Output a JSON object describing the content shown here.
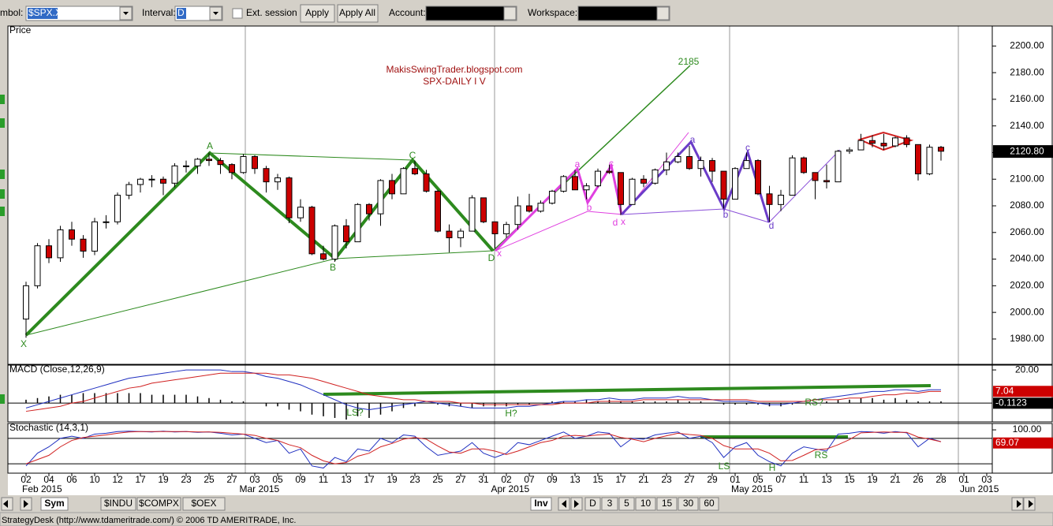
{
  "toolbar": {
    "symbol_label": "mbol:",
    "symbol": "$SPX.X",
    "interval_label": "Interval:",
    "interval": "D",
    "ext_session": "Ext. session",
    "apply": "Apply",
    "apply_all": "Apply All",
    "account_label": "Account:",
    "workspace_label": "Workspace:"
  },
  "chart_data": [
    {
      "type": "candlestick",
      "title": "Price",
      "categories": [
        "02",
        null,
        "04",
        null,
        "06",
        null,
        "10",
        null,
        "12",
        null,
        "17",
        null,
        "19",
        null,
        "23",
        null,
        "25",
        null,
        "27",
        null,
        "03",
        null,
        "05",
        null,
        "09",
        null,
        "11",
        null,
        "13",
        null,
        "17",
        null,
        "19",
        null,
        "23",
        null,
        "25",
        null,
        "27",
        null,
        "31",
        null,
        "02",
        null,
        "07",
        null,
        "09",
        null,
        "13",
        null,
        "15",
        null,
        "17",
        null,
        "21",
        null,
        "23",
        null,
        "27",
        null,
        "29",
        null,
        "01",
        null,
        "05",
        null,
        "07",
        null,
        "11",
        null,
        "13",
        null,
        "15",
        null,
        "19",
        null,
        "21",
        null,
        "26",
        null,
        "28",
        null,
        "01",
        null,
        "03"
      ],
      "open": [
        1995,
        2020,
        2050,
        2041,
        2062,
        2055,
        2046,
        2068,
        2068,
        2088,
        2096,
        2100,
        2100,
        2097,
        2110,
        2110,
        2115,
        2114,
        2111,
        2105,
        2117,
        2108,
        2098,
        2101,
        2071,
        2079,
        2044,
        2040,
        2065,
        2053,
        2081,
        2074,
        2099,
        2089,
        2108,
        2104,
        2091,
        2061,
        2056,
        2061,
        2086,
        2068,
        2059,
        2066,
        2080,
        2076,
        2082,
        2091,
        2102,
        2092,
        2095,
        2106,
        2105,
        2081,
        2100,
        2097,
        2107,
        2113,
        2117,
        2108,
        2114,
        2106,
        2085,
        2108,
        2114,
        2089,
        2081,
        2088,
        2116,
        2105,
        2099,
        2098,
        2121,
        2122,
        2129,
        2127,
        2125,
        2131,
        2126,
        2104,
        2124,
        null,
        null,
        null,
        null
      ],
      "high": [
        2023,
        2052,
        2055,
        2065,
        2068,
        2058,
        2071,
        2073,
        2090,
        2098,
        2101,
        2103,
        2102,
        2112,
        2114,
        2116,
        2120,
        2116,
        2112,
        2119,
        2118,
        2110,
        2104,
        2102,
        2085,
        2080,
        2050,
        2066,
        2070,
        2082,
        2082,
        2100,
        2104,
        2109,
        2114,
        2107,
        2092,
        2066,
        2063,
        2088,
        2086,
        2068,
        2068,
        2087,
        2089,
        2084,
        2092,
        2103,
        2107,
        2097,
        2108,
        2111,
        2105,
        2101,
        2103,
        2108,
        2120,
        2120,
        2125,
        2117,
        2116,
        2106,
        2109,
        2120,
        2115,
        2095,
        2092,
        2118,
        2117,
        2105,
        2111,
        2122,
        2124,
        2134,
        2133,
        2134,
        2132,
        2133,
        2126,
        2126,
        2125,
        null,
        null,
        null,
        null
      ],
      "low": [
        1981,
        2018,
        2037,
        2038,
        2050,
        2041,
        2043,
        2063,
        2066,
        2085,
        2090,
        2094,
        2088,
        2094,
        2105,
        2104,
        2110,
        2104,
        2100,
        2104,
        2104,
        2090,
        2092,
        2067,
        2068,
        2043,
        2039,
        2038,
        2048,
        2053,
        2069,
        2065,
        2085,
        2089,
        2103,
        2090,
        2060,
        2045,
        2049,
        2061,
        2067,
        2048,
        2056,
        2062,
        2075,
        2075,
        2081,
        2090,
        2092,
        2085,
        2094,
        2104,
        2073,
        2081,
        2094,
        2096,
        2103,
        2112,
        2107,
        2102,
        2098,
        2078,
        2085,
        2108,
        2088,
        2068,
        2076,
        2088,
        2104,
        2085,
        2093,
        2098,
        2119,
        2122,
        2124,
        2122,
        2124,
        2124,
        2099,
        2103,
        2114,
        null,
        null,
        null,
        null
      ],
      "close": [
        2020,
        2050,
        2041,
        2062,
        2055,
        2046,
        2068,
        2068,
        2088,
        2096,
        2100,
        2100,
        2097,
        2110,
        2110,
        2115,
        2114,
        2111,
        2105,
        2117,
        2108,
        2098,
        2101,
        2071,
        2079,
        2044,
        2040,
        2065,
        2053,
        2081,
        2074,
        2099,
        2089,
        2108,
        2104,
        2091,
        2061,
        2056,
        2061,
        2086,
        2068,
        2059,
        2066,
        2080,
        2076,
        2082,
        2091,
        2102,
        2092,
        2095,
        2106,
        2105,
        2081,
        2100,
        2097,
        2107,
        2113,
        2117,
        2108,
        2114,
        2106,
        2085,
        2108,
        2114,
        2089,
        2081,
        2088,
        2116,
        2105,
        2099,
        2098,
        2121,
        2122,
        2129,
        2127,
        2125,
        2131,
        2126,
        2104,
        2124,
        2121,
        null,
        null,
        null,
        null
      ],
      "up_color": "#ffffff",
      "down_color": "#cc0000",
      "ylim": [
        1961,
        2215
      ],
      "yticks": [
        {
          "value": 1980,
          "label": "1980.00"
        },
        {
          "value": 2000,
          "label": "2000.00"
        },
        {
          "value": 2020,
          "label": "2020.00"
        },
        {
          "value": 2040,
          "label": "2040.00"
        },
        {
          "value": 2060,
          "label": "2060.00"
        },
        {
          "value": 2080,
          "label": "2080.00"
        },
        {
          "value": 2100,
          "label": "2100.00"
        },
        {
          "value": 2120,
          "label": "2120.00"
        },
        {
          "value": 2140,
          "label": "2140.00"
        },
        {
          "value": 2160,
          "label": "2160.00"
        },
        {
          "value": 2180,
          "label": "2180.00"
        },
        {
          "value": 2200,
          "label": "2200.00"
        }
      ],
      "last_price": {
        "value": 2120.8,
        "label": "2120.80"
      },
      "months": [
        "Feb 2015",
        "Mar 2015",
        "Apr 2015",
        "May 2015",
        "Jun 2015"
      ],
      "watermark": [
        "MakisSwingTrader.blogspot.com",
        "SPX-DAILY  I V"
      ],
      "annotations": [
        "2185",
        "X",
        "A",
        "B",
        "C",
        "D",
        "x",
        "a",
        "b",
        "c",
        "d",
        "x",
        "a",
        "b",
        "c",
        "d"
      ]
    },
    {
      "type": "macd",
      "title": "MACD (Close,12,26,9)",
      "series": [
        {
          "color": "#1f2fc0",
          "values": [
            -3,
            -1,
            1,
            3,
            5,
            7,
            9,
            11,
            13,
            15,
            16,
            17,
            18,
            19,
            20,
            20,
            20,
            20,
            19,
            19,
            18,
            16,
            15,
            13,
            11,
            8,
            5,
            2,
            -1,
            -3,
            -4,
            -3,
            -2,
            -1,
            0,
            1,
            0,
            -1,
            -2,
            -3,
            -3,
            -3,
            -3,
            -2,
            -2,
            -1,
            0,
            1,
            1,
            2,
            2,
            3,
            2,
            2,
            3,
            3,
            3,
            4,
            3,
            3,
            2,
            1,
            1,
            1,
            0,
            -1,
            -1,
            0,
            1,
            2,
            3,
            4,
            5,
            6,
            7,
            7,
            8,
            8,
            7,
            8,
            8,
            null,
            null,
            null,
            null
          ]
        },
        {
          "color": "#d02020",
          "values": [
            -5,
            -4,
            -3,
            -2,
            0,
            1,
            3,
            5,
            7,
            9,
            10,
            12,
            13,
            14,
            15,
            16,
            17,
            18,
            18,
            18,
            18,
            18,
            17,
            17,
            16,
            15,
            13,
            11,
            9,
            7,
            5,
            4,
            3,
            2,
            2,
            1,
            1,
            1,
            0,
            0,
            -1,
            -1,
            -1,
            -1,
            -1,
            -1,
            -1,
            0,
            0,
            0,
            1,
            1,
            1,
            1,
            2,
            2,
            2,
            2,
            2,
            2,
            2,
            2,
            2,
            2,
            1,
            1,
            1,
            1,
            1,
            2,
            2,
            2,
            3,
            3,
            4,
            5,
            5,
            6,
            6,
            7,
            7,
            null,
            null,
            null,
            null
          ]
        }
      ],
      "histogram": {
        "color": "#000000",
        "values": [
          2,
          3,
          4,
          5,
          5,
          6,
          6,
          6,
          6,
          6,
          6,
          5,
          5,
          5,
          5,
          4,
          3,
          2,
          1,
          1,
          0,
          -2,
          -2,
          -4,
          -5,
          -7,
          -8,
          -9,
          -10,
          -8,
          -9,
          -7,
          -5,
          -3,
          -2,
          0,
          -1,
          -2,
          -2,
          -3,
          -2,
          -2,
          -2,
          -1,
          -1,
          0,
          1,
          1,
          1,
          2,
          1,
          2,
          1,
          1,
          1,
          1,
          1,
          2,
          1,
          1,
          0,
          -1,
          -1,
          -1,
          -1,
          -2,
          -2,
          -1,
          0,
          0,
          1,
          2,
          2,
          3,
          3,
          2,
          3,
          2,
          1,
          1,
          1,
          null,
          null,
          null,
          null
        ]
      },
      "ylim": [
        -11.4,
        22.9
      ],
      "yticks": [
        {
          "value": 20,
          "label": "20.00"
        }
      ],
      "levels": [
        0
      ],
      "readouts": [
        {
          "value": 7.04,
          "label": "7.04",
          "color": "#cc0000"
        },
        {
          "value": -0.1123,
          "label": "-0.1123",
          "color": "#000000"
        }
      ],
      "annotations": [
        "LS?",
        "H?",
        "RS?"
      ]
    },
    {
      "type": "stochastic",
      "title": "Stochastic (14,3,1)",
      "series": [
        {
          "color": "#1f2fc0",
          "values": [
            15,
            45,
            60,
            80,
            85,
            80,
            90,
            92,
            96,
            97,
            96,
            95,
            97,
            95,
            96,
            94,
            95,
            92,
            88,
            90,
            80,
            70,
            75,
            45,
            55,
            15,
            10,
            35,
            25,
            55,
            50,
            80,
            70,
            88,
            85,
            60,
            40,
            45,
            50,
            70,
            45,
            35,
            45,
            70,
            65,
            75,
            85,
            95,
            80,
            85,
            95,
            92,
            60,
            80,
            78,
            88,
            92,
            95,
            80,
            85,
            70,
            35,
            60,
            70,
            40,
            25,
            15,
            45,
            60,
            55,
            50,
            90,
            92,
            96,
            95,
            92,
            96,
            93,
            60,
            80,
            72,
            null,
            null,
            null,
            null
          ]
        },
        {
          "color": "#d02020",
          "values": [
            20,
            30,
            40,
            60,
            75,
            82,
            85,
            88,
            92,
            95,
            96,
            96,
            96,
            96,
            96,
            95,
            95,
            94,
            92,
            90,
            87,
            80,
            75,
            65,
            58,
            40,
            27,
            20,
            23,
            38,
            45,
            60,
            68,
            78,
            82,
            78,
            62,
            48,
            45,
            55,
            55,
            50,
            42,
            50,
            60,
            70,
            75,
            85,
            87,
            85,
            88,
            90,
            82,
            78,
            72,
            80,
            86,
            92,
            89,
            87,
            80,
            63,
            55,
            55,
            55,
            45,
            27,
            28,
            40,
            53,
            55,
            65,
            77,
            93,
            94,
            95,
            94,
            94,
            83,
            78,
            72,
            null,
            null,
            null,
            null
          ]
        }
      ],
      "ylim": [
        -2,
        115
      ],
      "yticks": [
        {
          "value": 100,
          "label": "100.00"
        }
      ],
      "levels": [
        20,
        80
      ],
      "readouts": [
        {
          "value": 69.07,
          "label": "69.07",
          "color": "#cc0000"
        }
      ],
      "annotations": [
        "LS",
        "H",
        "RS"
      ]
    }
  ],
  "tabs": {
    "symbols": [
      "Sym",
      "$INDU",
      "$COMPX",
      "$OEX"
    ],
    "inv": "Inv",
    "intervals": [
      "D",
      "3",
      "5",
      "10",
      "15",
      "30",
      "60"
    ]
  },
  "status": "StrategyDesk (http://www.tdameritrade.com/) © 2006 TD AMERITRADE, Inc."
}
